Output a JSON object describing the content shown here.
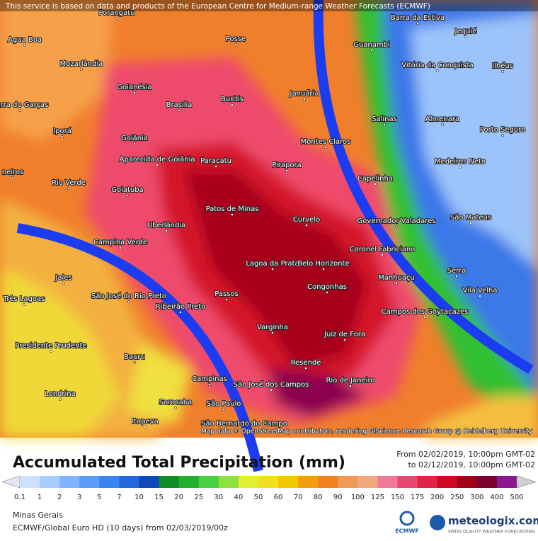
{
  "attribution": "This service is based on data and products of the European Centre for Medium-range Weather Forecasts (ECMWF)",
  "map_credit": "Map data © OpenStreetMap contributors, rendering GIScience Research Group @ Heidelberg University",
  "title": "Accumulated Total Precipitation (mm)",
  "period_from": "From 02/02/2019, 10:00pm GMT-02",
  "period_to": "to 02/12/2019, 10:00pm GMT-02",
  "legend": {
    "values": [
      0.1,
      1,
      2,
      3,
      5,
      7,
      10,
      15,
      20,
      25,
      30,
      40,
      50,
      60,
      70,
      80,
      90,
      100,
      125,
      150,
      175,
      200,
      250,
      300,
      400,
      500
    ]
  },
  "region": "Minas Gerais",
  "model": "ECMWF/Global Euro HD (10 days) from 02/03/2019/00z",
  "logo_left": "ECMWF",
  "logo_right": "meteologix.com",
  "logo_tagline": "SWISS QUALITY WEATHER FORECASTING",
  "cities": [
    "Porangatu",
    "Posse",
    "Barra da Estiva",
    "Jequié",
    "Agua Boa",
    "Guanambi",
    "Vitória da Conquista",
    "Mozarlândia",
    "Ilhéus",
    "Goianésia",
    "Buritis",
    "Januária",
    "Barra do Garças",
    "Brasília",
    "Salinas",
    "Almenara",
    "Iporá",
    "Montes Claros",
    "Porto Seguro",
    "Goiânia",
    "Aparecida de Goiânia",
    "Paracatu",
    "Pirapora",
    "Medeiros Neto",
    "Capelinha",
    "neiros",
    "Rio Verde",
    "Goiatuba",
    "Patos de Minas",
    "Curvelo",
    "Governador Valadares",
    "São Mateus",
    "Uberlândia",
    "Coronel Fabriciano",
    "Campina Verde",
    "Lagoa da Prata",
    "Belo Horizonte",
    "Serra",
    "Jales",
    "São José do Rio Preto",
    "Vila Velha",
    "Passos",
    "Congonhas",
    "Manhuaçu",
    "Três Lagoas",
    "Ribeirão Preto",
    "Campos dos Goytacazes",
    "Varginha",
    "Juiz de Fora",
    "Presidente Prudente",
    "Bauru",
    "Resende",
    "Campinas",
    "São José dos Campos",
    "Rio de Janeiro",
    "Londrina",
    "Sorocaba",
    "São Paulo",
    "Itapeva",
    "São Bernardo do Campo"
  ]
}
